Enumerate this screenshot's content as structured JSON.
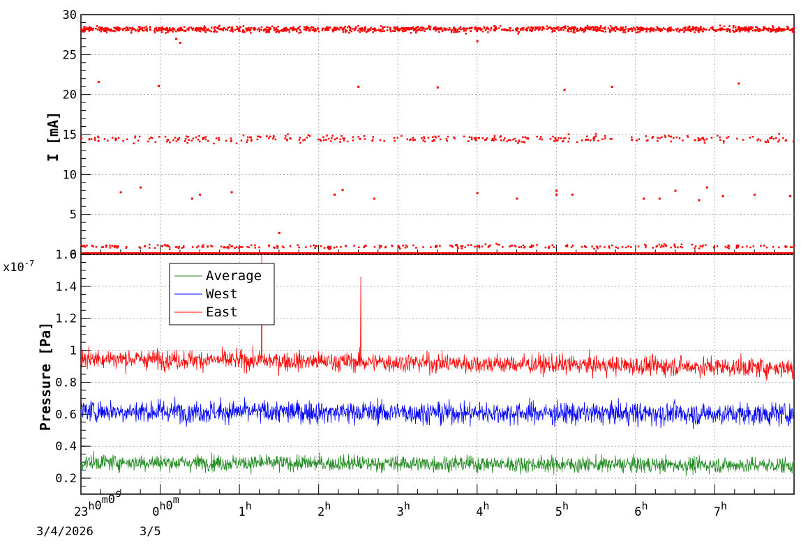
{
  "chart_data": [
    {
      "type": "scatter",
      "ylabel": "I [mA]",
      "ylim": [
        0,
        30
      ],
      "yticks": [
        0,
        5,
        10,
        15,
        20,
        25,
        30
      ],
      "grid": true,
      "marker_color": "#ff0000",
      "series": [
        {
          "x_hours": [
            -0.9,
            -0.8,
            -0.6,
            -0.3,
            0.1,
            0.3,
            0.5,
            0.8,
            1.3,
            1.5,
            1.9,
            2.3,
            2.6,
            3.2,
            3.4,
            3.8,
            4.0,
            4.3,
            4.6,
            5.0,
            5.2,
            5.5,
            5.9,
            6.3,
            6.6,
            6.8,
            7.2,
            7.5
          ],
          "clusters": [
            {
              "level": 28.2,
              "spread": 0.35,
              "density": 420
            },
            {
              "level": 14.5,
              "spread": 0.5,
              "density": 230
            },
            {
              "level": 1.0,
              "spread": 0.25,
              "density": 210
            },
            {
              "level": 0.05,
              "spread": 0.05,
              "density": 300
            }
          ],
          "outliers": [
            [
              -0.78,
              21.6
            ],
            [
              -0.02,
              21.1
            ],
            [
              2.5,
              21.0
            ],
            [
              3.5,
              20.9
            ],
            [
              5.1,
              20.6
            ],
            [
              5.7,
              21.0
            ],
            [
              7.3,
              21.4
            ],
            [
              -0.5,
              7.8
            ],
            [
              -0.25,
              8.4
            ],
            [
              0.4,
              7.0
            ],
            [
              0.5,
              7.5
            ],
            [
              0.9,
              7.8
            ],
            [
              2.2,
              7.5
            ],
            [
              2.3,
              8.1
            ],
            [
              2.7,
              7.0
            ],
            [
              4.0,
              7.7
            ],
            [
              4.5,
              7.0
            ],
            [
              5.0,
              7.5
            ],
            [
              5.0,
              8.0
            ],
            [
              5.2,
              7.5
            ],
            [
              6.1,
              7.0
            ],
            [
              6.3,
              7.0
            ],
            [
              6.5,
              8.0
            ],
            [
              6.8,
              6.8
            ],
            [
              6.9,
              8.4
            ],
            [
              7.1,
              7.3
            ],
            [
              7.5,
              7.5
            ],
            [
              7.95,
              7.3
            ],
            [
              0.2,
              27.0
            ],
            [
              0.25,
              26.5
            ],
            [
              4.0,
              26.7
            ],
            [
              1.5,
              2.7
            ]
          ]
        }
      ]
    },
    {
      "type": "line",
      "ylabel": "Pressure [Pa]",
      "y_exponent_label": "x10",
      "y_exponent": "-7",
      "ylim": [
        0.1,
        1.6
      ],
      "yticks": [
        "0.2",
        "0.4",
        "0.6",
        "0.8",
        "1",
        "1.2",
        "1.4",
        "1.6"
      ],
      "xlabels": [
        "23h0m0s",
        "0h0m",
        "1h",
        "2h",
        "3h",
        "4h",
        "5h",
        "6h",
        "7h"
      ],
      "date_labels": [
        "3/4/2026",
        "3/5"
      ],
      "x_range_hours": [
        -1,
        8
      ],
      "grid": true,
      "legend_position": "top-left",
      "series": [
        {
          "name": "Average",
          "color": "#228b22",
          "mean": 0.3,
          "noise": 0.05,
          "trend": -0.02
        },
        {
          "name": "West",
          "color": "#0000ff",
          "mean": 0.62,
          "noise": 0.07,
          "trend": -0.02
        },
        {
          "name": "East",
          "color": "#ff0000",
          "mean": 0.95,
          "noise": 0.06,
          "trend": -0.06,
          "spikes": [
            [
              1.28,
              1.6
            ],
            [
              2.53,
              1.46
            ]
          ]
        }
      ]
    }
  ]
}
